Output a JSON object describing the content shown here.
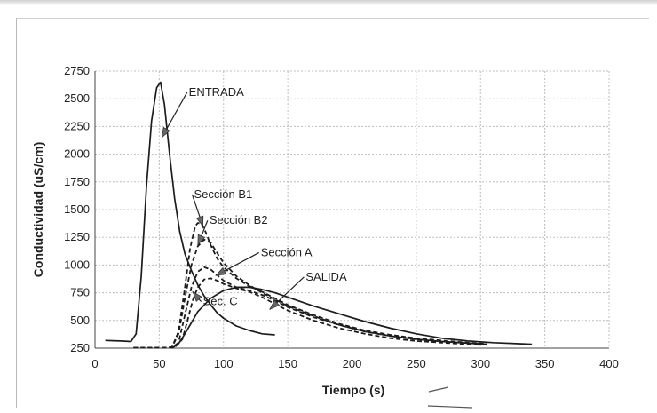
{
  "chart_data": {
    "type": "line",
    "title": "",
    "xlabel": "Tiempo (s)",
    "ylabel": "Conductividad (uS/cm)",
    "xlim": [
      0,
      400
    ],
    "ylim": [
      250,
      2750
    ],
    "xticks": [
      0,
      50,
      100,
      150,
      200,
      250,
      300,
      350,
      400
    ],
    "yticks": [
      250,
      500,
      750,
      1000,
      1250,
      1500,
      1750,
      2000,
      2250,
      2500,
      2750
    ],
    "grid": true,
    "legend": "none",
    "series": [
      {
        "name": "ENTRADA",
        "style": "solid",
        "x": [
          8,
          20,
          28,
          32,
          36,
          40,
          44,
          48,
          51,
          54,
          58,
          62,
          66,
          70,
          75,
          80,
          85,
          90,
          95,
          100,
          110,
          120,
          130,
          140
        ],
        "y": [
          320,
          315,
          310,
          380,
          900,
          1700,
          2300,
          2600,
          2650,
          2450,
          2000,
          1600,
          1300,
          1100,
          950,
          820,
          720,
          640,
          570,
          520,
          450,
          410,
          380,
          370
        ]
      },
      {
        "name": "Sección B1",
        "style": "dashed",
        "x": [
          30,
          55,
          60,
          65,
          70,
          74,
          78,
          80,
          83,
          86,
          90,
          95,
          100,
          110,
          120,
          130,
          140,
          150,
          170,
          190,
          210,
          230,
          250,
          270,
          290,
          305
        ],
        "y": [
          255,
          255,
          260,
          400,
          800,
          1150,
          1350,
          1380,
          1370,
          1300,
          1180,
          1060,
          980,
          880,
          810,
          760,
          700,
          640,
          550,
          470,
          410,
          370,
          340,
          320,
          300,
          290
        ]
      },
      {
        "name": "Sección B2",
        "style": "dashed",
        "x": [
          30,
          55,
          60,
          65,
          70,
          75,
          80,
          85,
          90,
          95,
          100,
          110,
          120,
          130,
          140,
          150,
          170,
          190,
          210,
          230,
          250,
          270,
          290,
          305
        ],
        "y": [
          255,
          255,
          260,
          380,
          700,
          1000,
          1170,
          1230,
          1200,
          1110,
          1020,
          900,
          820,
          750,
          690,
          630,
          540,
          460,
          400,
          360,
          330,
          310,
          295,
          285
        ]
      },
      {
        "name": "Sección A",
        "style": "dashed",
        "x": [
          30,
          60,
          65,
          70,
          75,
          80,
          85,
          90,
          95,
          100,
          110,
          120,
          130,
          140,
          150,
          170,
          190,
          210,
          230,
          250,
          270,
          290,
          305
        ],
        "y": [
          255,
          255,
          300,
          550,
          800,
          940,
          980,
          960,
          910,
          860,
          800,
          770,
          730,
          680,
          620,
          530,
          460,
          400,
          360,
          330,
          310,
          295,
          285
        ]
      },
      {
        "name": "Sec. C",
        "style": "dashed",
        "x": [
          30,
          62,
          68,
          72,
          76,
          80,
          85,
          90,
          95,
          100,
          110,
          120,
          130,
          140,
          150,
          170,
          190,
          210,
          230,
          250,
          270,
          290,
          300
        ],
        "y": [
          255,
          255,
          330,
          500,
          680,
          800,
          870,
          880,
          860,
          830,
          790,
          760,
          710,
          650,
          590,
          500,
          430,
          380,
          340,
          315,
          300,
          285,
          280
        ]
      },
      {
        "name": "SALIDA",
        "style": "solid",
        "x": [
          60,
          65,
          70,
          75,
          80,
          90,
          100,
          110,
          120,
          130,
          140,
          150,
          170,
          190,
          210,
          230,
          250,
          270,
          290,
          310,
          330,
          340
        ],
        "y": [
          250,
          290,
          380,
          480,
          580,
          700,
          770,
          800,
          800,
          780,
          750,
          710,
          630,
          560,
          490,
          430,
          380,
          340,
          315,
          300,
          290,
          285
        ]
      }
    ],
    "annotations": [
      {
        "text": "ENTRADA",
        "tx": 73,
        "ty": 2525,
        "ax": 52,
        "ay": 2150
      },
      {
        "text": "Sección B1",
        "tx": 77,
        "ty": 1605,
        "ax": 84,
        "ay": 1350
      },
      {
        "text": "Sección B2",
        "tx": 89,
        "ty": 1370,
        "ax": 80,
        "ay": 1180
      },
      {
        "text": "Sección A",
        "tx": 129,
        "ty": 1080,
        "ax": 94,
        "ay": 905
      },
      {
        "text": "SALIDA",
        "tx": 164,
        "ty": 860,
        "ax": 136,
        "ay": 600
      },
      {
        "text": "Sec. C",
        "tx": 84,
        "ty": 638,
        "ax": 76,
        "ay": 760
      }
    ]
  }
}
